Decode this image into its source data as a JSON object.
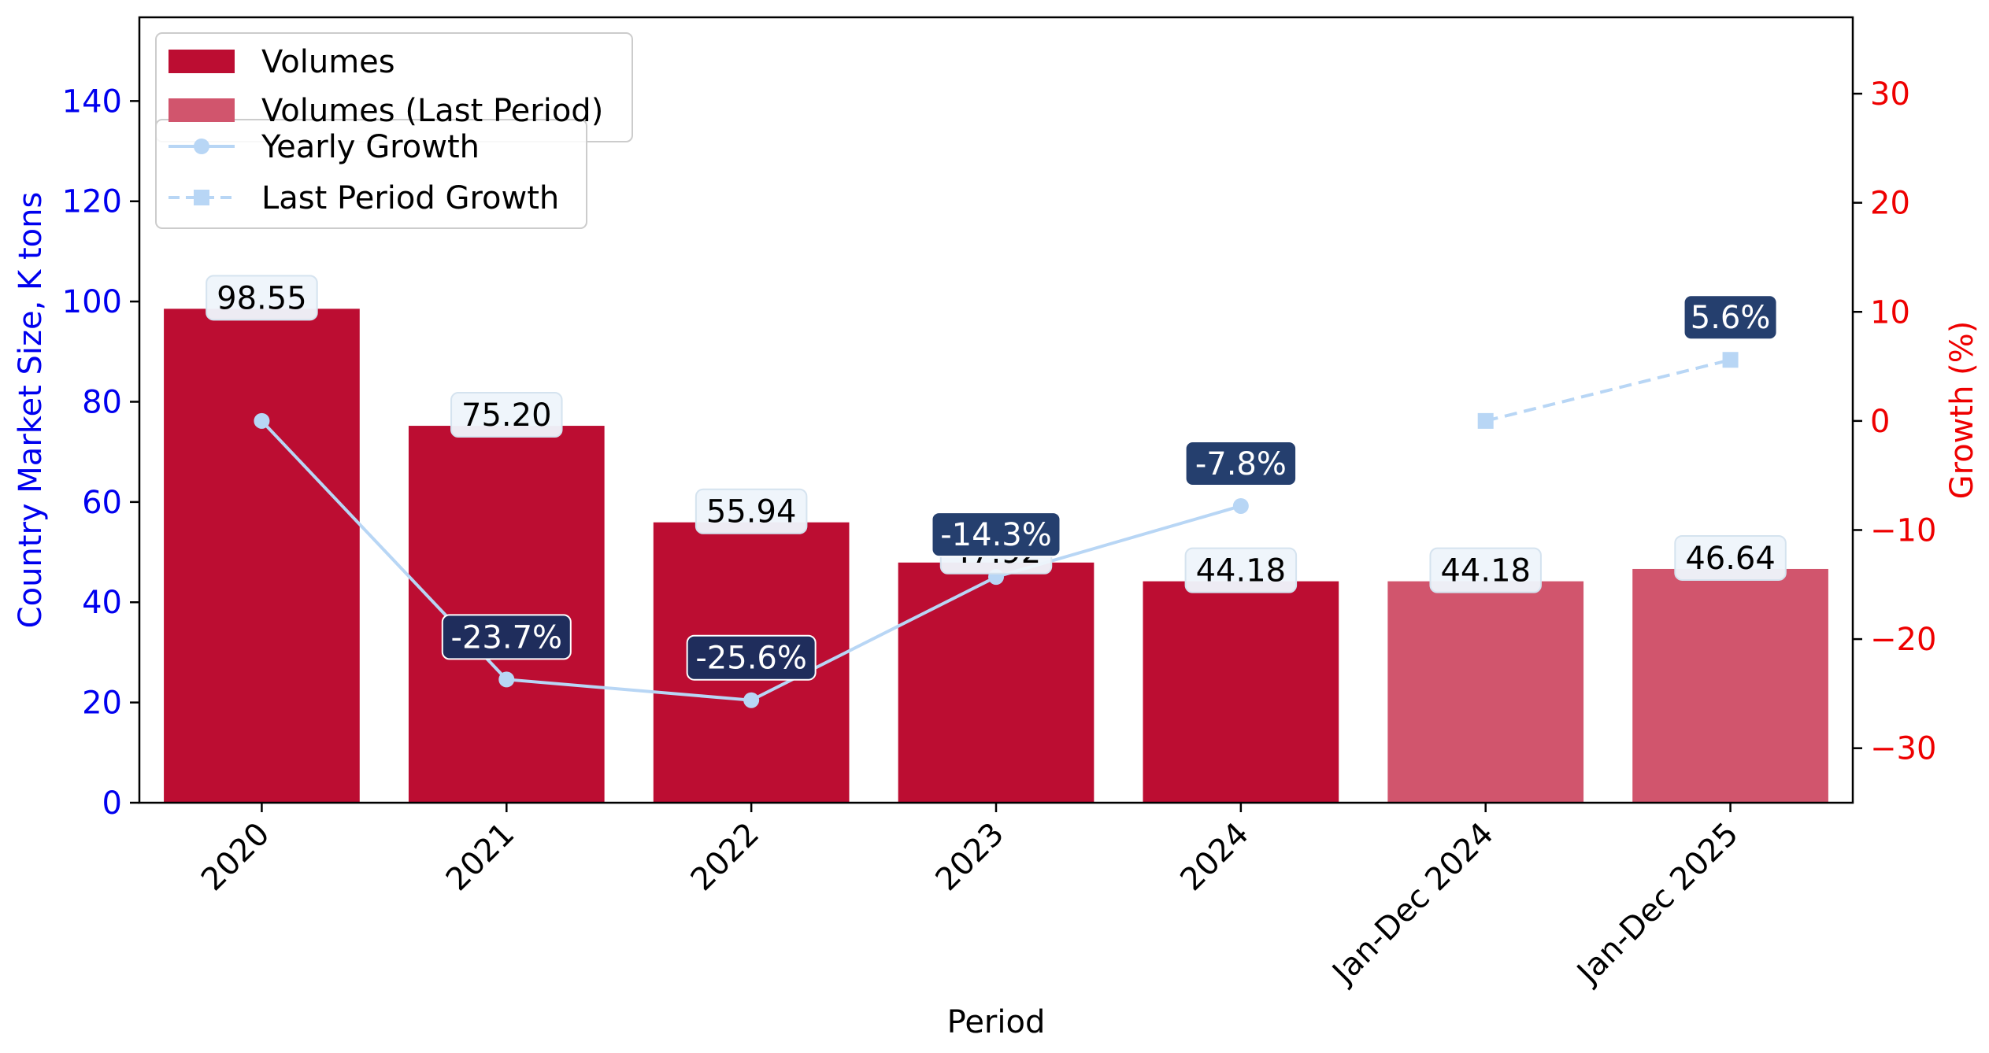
{
  "chart_data": {
    "type": "bar",
    "categories": [
      "2020",
      "2021",
      "2022",
      "2023",
      "2024",
      "Jan-Dec 2024",
      "Jan-Dec 2025"
    ],
    "xlabel": "Period",
    "ylabel": "Country Market Size, K tons",
    "y2label": "Growth (%)",
    "ylim": [
      0,
      156.7
    ],
    "y2lim": [
      -35,
      37
    ],
    "yticks": [
      "0",
      "20",
      "40",
      "60",
      "80",
      "100",
      "120",
      "140"
    ],
    "y2ticks": [
      "−30",
      "−20",
      "−10",
      "0",
      "10",
      "20",
      "30"
    ],
    "y2tick_values": [
      -30,
      -20,
      -10,
      0,
      10,
      20,
      30
    ],
    "ytick_values": [
      0,
      20,
      40,
      60,
      80,
      100,
      120,
      140
    ],
    "grid": false,
    "series": [
      {
        "name": "Volumes",
        "kind": "bar",
        "axis": "left",
        "color": "#bc0d32",
        "values": [
          98.55,
          75.2,
          55.94,
          47.92,
          44.18,
          null,
          null
        ],
        "labels": [
          "98.55",
          "75.20",
          "55.94",
          "47.92",
          "44.18",
          null,
          null
        ]
      },
      {
        "name": "Volumes (Last Period)",
        "kind": "bar",
        "axis": "left",
        "color": "#d1556d",
        "values": [
          null,
          null,
          null,
          null,
          null,
          44.18,
          46.64
        ],
        "labels": [
          null,
          null,
          null,
          null,
          null,
          "44.18",
          "46.64"
        ]
      },
      {
        "name": "Yearly Growth",
        "kind": "line",
        "axis": "right",
        "color": "#b8d6f5",
        "marker": "circle",
        "values": [
          0,
          -23.7,
          -25.6,
          -14.3,
          -7.8,
          null,
          null
        ],
        "labels": [
          null,
          "-23.7%",
          "-25.6%",
          "-14.3%",
          "-7.8%",
          null,
          null
        ]
      },
      {
        "name": "Last Period Growth",
        "kind": "line",
        "dashed": true,
        "axis": "right",
        "color": "#b8d6f5",
        "marker": "square",
        "values": [
          null,
          null,
          null,
          null,
          null,
          0,
          5.6
        ],
        "labels": [
          null,
          null,
          null,
          null,
          null,
          null,
          "5.6%"
        ]
      }
    ],
    "legend": [
      {
        "label": "Volumes",
        "kind": "bar",
        "color": "#bc0d32"
      },
      {
        "label": "Volumes (Last Period)",
        "kind": "bar",
        "color": "#d1556d"
      },
      {
        "label": "Yearly Growth",
        "kind": "line",
        "marker": "circle",
        "color": "#b8d6f5"
      },
      {
        "label": "Last Period Growth",
        "kind": "line",
        "marker": "square",
        "dashed": true,
        "color": "#b8d6f5"
      }
    ],
    "legend_position": "top-left",
    "colors": {
      "left_axis": "#0000ee",
      "right_axis": "#ee0000",
      "growth_label_bg_negative": "#1f2d5c",
      "growth_label_bg": "#253f6e",
      "value_label_bg": "#eef5fb"
    }
  }
}
